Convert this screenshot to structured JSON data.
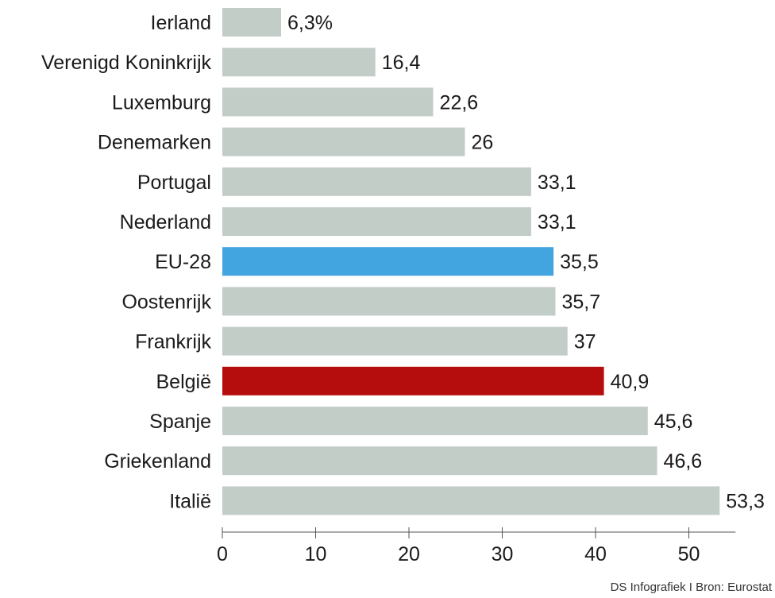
{
  "chart_data": {
    "type": "bar",
    "orientation": "horizontal",
    "categories": [
      "Ierland",
      "Verenigd Koninkrijk",
      "Luxemburg",
      "Denemarken",
      "Portugal",
      "Nederland",
      "EU-28",
      "Oostenrijk",
      "Frankrijk",
      "België",
      "Spanje",
      "Griekenland",
      "Italië"
    ],
    "values": [
      6.3,
      16.4,
      22.6,
      26,
      33.1,
      33.1,
      35.5,
      35.7,
      37,
      40.9,
      45.6,
      46.6,
      53.3
    ],
    "value_labels": [
      "6,3%",
      "16,4",
      "22,6",
      "26",
      "33,1",
      "33,1",
      "35,5",
      "35,7",
      "37",
      "40,9",
      "45,6",
      "46,6",
      "53,3"
    ],
    "xlim": [
      0,
      55
    ],
    "xticks": [
      0,
      10,
      20,
      30,
      40,
      50
    ],
    "title": "",
    "xlabel": "",
    "ylabel": "",
    "grid": false,
    "colors": {
      "default": "#c3cdc8",
      "highlights": {
        "EU-28": "#43a5df",
        "België": "#b50d0d"
      }
    }
  },
  "source": "DS Infografiek I Bron: Eurostat"
}
